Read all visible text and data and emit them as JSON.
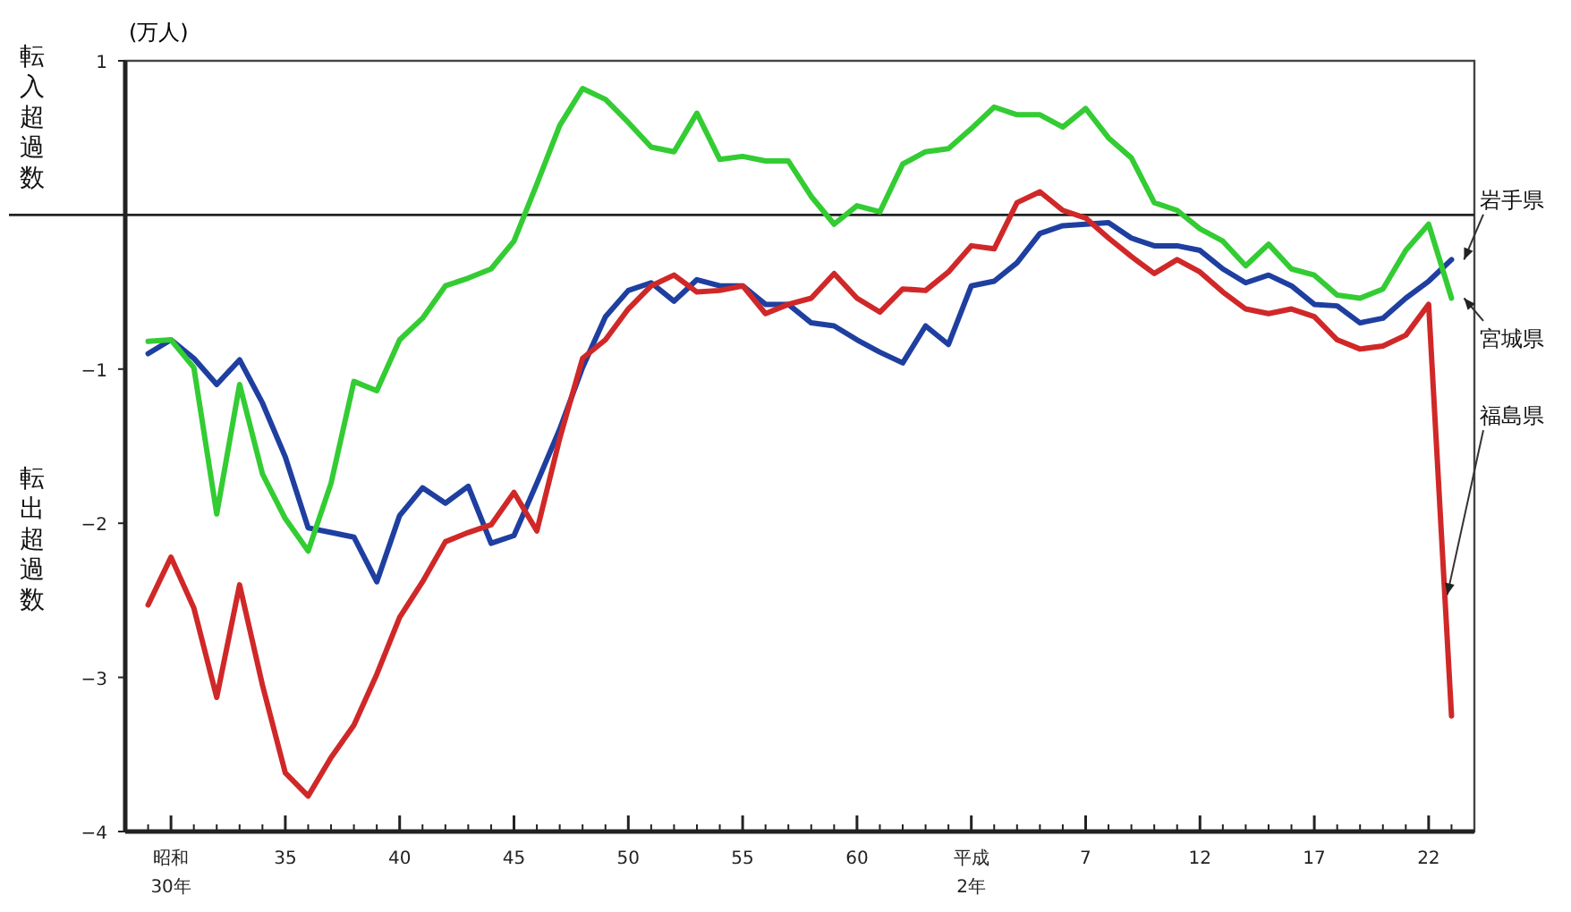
{
  "chart_data": {
    "type": "line",
    "ylabel": "(万人)",
    "annotations": [
      "転入超過数",
      "転出超過数"
    ],
    "categories": [
      null,
      "昭和\n30年",
      null,
      null,
      null,
      null,
      "35",
      null,
      null,
      null,
      null,
      "40",
      null,
      null,
      null,
      null,
      "45",
      null,
      null,
      null,
      null,
      "50",
      null,
      null,
      null,
      null,
      "55",
      null,
      null,
      null,
      null,
      "60",
      null,
      null,
      null,
      null,
      "平成\n2年",
      null,
      null,
      null,
      null,
      "7",
      null,
      null,
      null,
      null,
      "12",
      null,
      null,
      null,
      null,
      "17",
      null,
      null,
      null,
      null,
      "22",
      null
    ],
    "series": [
      {
        "name": "岩手県",
        "color": "#1f3fa0",
        "values": [
          -0.9,
          -0.81,
          -0.93,
          -1.1,
          -0.94,
          -1.22,
          -1.57,
          -2.03,
          -2.06,
          -2.09,
          -2.38,
          -1.95,
          -1.77,
          -1.87,
          -1.76,
          -2.13,
          -2.08,
          -1.74,
          -1.39,
          -0.99,
          -0.66,
          -0.49,
          -0.44,
          -0.56,
          -0.42,
          -0.46,
          -0.46,
          -0.58,
          -0.58,
          -0.7,
          -0.72,
          -0.81,
          -0.89,
          -0.96,
          -0.72,
          -0.84,
          -0.46,
          -0.43,
          -0.31,
          -0.12,
          -0.07,
          -0.06,
          -0.05,
          -0.15,
          -0.2,
          -0.2,
          -0.23,
          -0.35,
          -0.44,
          -0.39,
          -0.46,
          -0.58,
          -0.59,
          -0.7,
          -0.67,
          -0.54,
          -0.43,
          -0.29
        ]
      },
      {
        "name": "宮城県",
        "color": "#33cc33",
        "values": [
          -0.82,
          -0.81,
          -0.99,
          -1.94,
          -1.1,
          -1.68,
          -1.97,
          -2.18,
          -1.74,
          -1.08,
          -1.14,
          -0.81,
          -0.67,
          -0.46,
          -0.41,
          -0.35,
          -0.17,
          0.2,
          0.58,
          0.82,
          0.75,
          0.6,
          0.44,
          0.41,
          0.66,
          0.36,
          0.38,
          0.35,
          0.35,
          0.12,
          -0.06,
          0.06,
          0.02,
          0.33,
          0.41,
          0.43,
          0.56,
          0.7,
          0.65,
          0.65,
          0.57,
          0.69,
          0.5,
          0.37,
          0.08,
          0.03,
          -0.09,
          -0.17,
          -0.33,
          -0.19,
          -0.35,
          -0.39,
          -0.52,
          -0.54,
          -0.48,
          -0.23,
          -0.06,
          -0.54
        ]
      },
      {
        "name": "福島県",
        "color": "#d02828",
        "values": [
          -2.53,
          -2.22,
          -2.55,
          -3.13,
          -2.4,
          -3.05,
          -3.62,
          -3.77,
          -3.52,
          -3.31,
          -2.98,
          -2.61,
          -2.38,
          -2.12,
          -2.06,
          -2.01,
          -1.8,
          -2.05,
          -1.45,
          -0.93,
          -0.81,
          -0.61,
          -0.46,
          -0.39,
          -0.5,
          -0.49,
          -0.46,
          -0.64,
          -0.58,
          -0.54,
          -0.38,
          -0.54,
          -0.63,
          -0.48,
          -0.49,
          -0.37,
          -0.2,
          -0.22,
          0.08,
          0.15,
          0.03,
          -0.02,
          -0.15,
          -0.27,
          -0.38,
          -0.29,
          -0.37,
          -0.5,
          -0.61,
          -0.64,
          -0.61,
          -0.66,
          -0.81,
          -0.87,
          -0.85,
          -0.78,
          -0.58,
          -3.25
        ]
      }
    ],
    "ylim": [
      -4,
      1
    ],
    "yticks": [
      1,
      -1,
      -2,
      -3,
      -4
    ],
    "ref_lines": [
      {
        "axis": "y",
        "value": 0,
        "label": null,
        "color": "#222222"
      }
    ],
    "grid": false,
    "legend": false,
    "marker": "none",
    "line_style": "solid"
  }
}
